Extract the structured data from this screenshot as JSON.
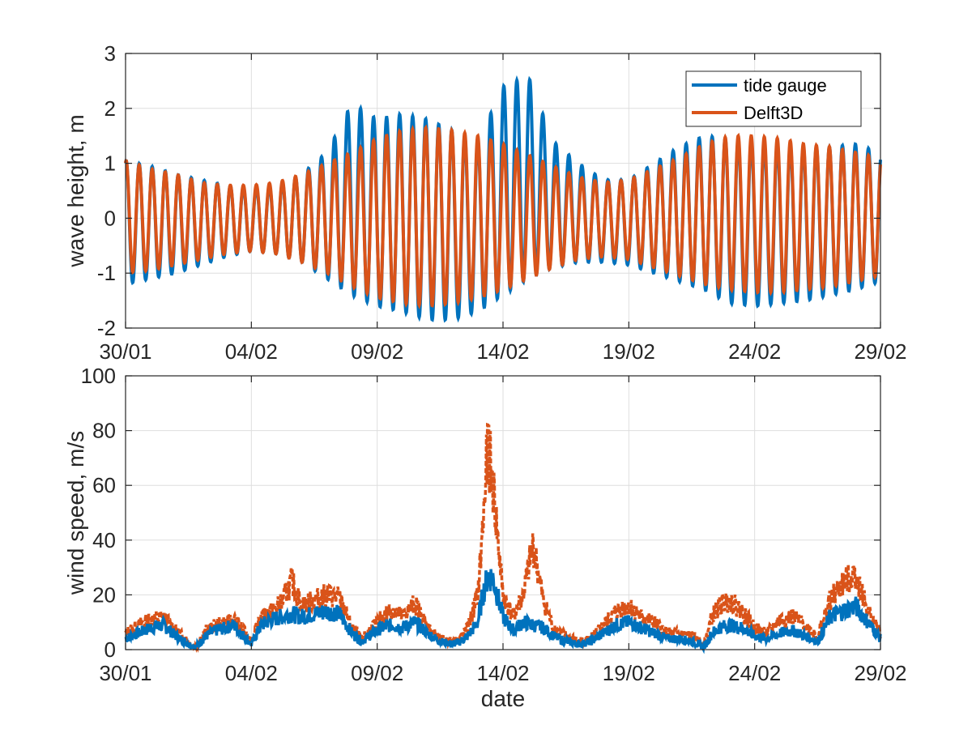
{
  "chart_data": [
    {
      "type": "line",
      "id": "wave",
      "xlabel": "",
      "ylabel": "wave height, m",
      "ylim": [
        -2,
        3
      ],
      "yticks": [
        -2,
        -1,
        0,
        1,
        2,
        3
      ],
      "xlim": [
        "30/01",
        "29/02"
      ],
      "xticks": [
        "30/01",
        "04/02",
        "09/02",
        "14/02",
        "19/02",
        "24/02",
        "29/02"
      ],
      "grid": true,
      "legend": "top-right",
      "colors": {
        "tide gauge": "#0072bd",
        "Delft3D": "#d95319"
      },
      "series": [
        {
          "name": "tide gauge",
          "x_dates": [
            "30/01",
            "31/01",
            "01/02",
            "02/02",
            "03/02",
            "04/02",
            "05/02",
            "06/02",
            "07/02",
            "08/02",
            "09/02",
            "10/02",
            "11/02",
            "12/02",
            "13/02",
            "14/02",
            "15/02",
            "16/02",
            "17/02",
            "18/02",
            "19/02",
            "20/02",
            "21/02",
            "22/02",
            "23/02",
            "24/02",
            "25/02",
            "26/02",
            "27/02",
            "28/02",
            "29/02"
          ],
          "high_water": [
            1.05,
            0.95,
            0.8,
            0.7,
            0.6,
            0.55,
            0.6,
            0.8,
            1.2,
            2.1,
            1.8,
            1.9,
            1.8,
            1.6,
            1.4,
            2.4,
            2.6,
            1.4,
            1.0,
            0.7,
            0.7,
            1.0,
            1.3,
            1.5,
            1.45,
            1.4,
            1.35,
            1.3,
            1.3,
            1.35,
            1.2
          ],
          "low_water": [
            -1.2,
            -1.1,
            -1.0,
            -0.85,
            -0.7,
            -0.6,
            -0.65,
            -0.8,
            -1.1,
            -1.4,
            -1.6,
            -1.7,
            -1.85,
            -1.85,
            -1.7,
            -1.4,
            -1.1,
            -0.9,
            -0.8,
            -0.8,
            -0.85,
            -1.0,
            -1.15,
            -1.3,
            -1.55,
            -1.6,
            -1.55,
            -1.5,
            -1.4,
            -1.3,
            -1.15
          ]
        },
        {
          "name": "Delft3D",
          "x_dates": [
            "30/01",
            "31/01",
            "01/02",
            "02/02",
            "03/02",
            "04/02",
            "05/02",
            "06/02",
            "07/02",
            "08/02",
            "09/02",
            "10/02",
            "11/02",
            "12/02",
            "13/02",
            "14/02",
            "15/02",
            "16/02",
            "17/02",
            "18/02",
            "19/02",
            "20/02",
            "21/02",
            "22/02",
            "23/02",
            "24/02",
            "25/02",
            "26/02",
            "27/02",
            "28/02",
            "29/02"
          ],
          "high_water": [
            1.05,
            0.9,
            0.8,
            0.65,
            0.6,
            0.6,
            0.65,
            0.8,
            1.0,
            1.2,
            1.45,
            1.6,
            1.65,
            1.6,
            1.5,
            1.35,
            1.15,
            0.95,
            0.75,
            0.65,
            0.7,
            0.9,
            1.1,
            1.35,
            1.5,
            1.5,
            1.45,
            1.35,
            1.3,
            1.2,
            1.1
          ],
          "low_water": [
            -1.0,
            -0.95,
            -0.85,
            -0.75,
            -0.65,
            -0.6,
            -0.65,
            -0.8,
            -1.0,
            -1.25,
            -1.45,
            -1.55,
            -1.6,
            -1.55,
            -1.45,
            -1.3,
            -1.1,
            -0.9,
            -0.75,
            -0.7,
            -0.75,
            -0.9,
            -1.05,
            -1.2,
            -1.3,
            -1.35,
            -1.35,
            -1.3,
            -1.25,
            -1.15,
            -1.05
          ]
        }
      ]
    },
    {
      "type": "line",
      "id": "wind",
      "xlabel": "date",
      "ylabel": "wind speed, m/s",
      "ylim": [
        0,
        100
      ],
      "yticks": [
        0,
        20,
        40,
        60,
        80,
        100
      ],
      "xlim": [
        "30/01",
        "29/02"
      ],
      "xticks": [
        "30/01",
        "04/02",
        "09/02",
        "14/02",
        "19/02",
        "24/02",
        "29/02"
      ],
      "grid": true,
      "legend": "none",
      "series": [
        {
          "name": "tide gauge",
          "x_days": [
            0,
            0.5,
            1,
            1.5,
            2,
            2.5,
            2.8,
            3.2,
            3.6,
            4,
            4.3,
            4.6,
            5,
            5.4,
            5.8,
            6.2,
            6.6,
            7,
            7.5,
            8,
            8.5,
            9,
            9.4,
            9.8,
            10.2,
            10.6,
            11,
            11.5,
            12,
            12.5,
            13,
            13.3,
            13.6,
            14,
            14.2,
            14.4,
            14.6,
            15,
            15.4,
            15.8,
            16.2,
            16.6,
            17,
            17.5,
            18,
            18.5,
            19,
            19.5,
            20,
            20.5,
            21,
            21.5,
            22,
            22.5,
            23,
            23.3,
            23.6,
            24,
            24.5,
            25,
            25.5,
            26,
            26.5,
            27,
            27.5,
            28,
            28.5,
            29,
            29.5,
            30
          ],
          "values": [
            4,
            6,
            8,
            9,
            5,
            2,
            1,
            5,
            7,
            8,
            9,
            6,
            2,
            9,
            11,
            12,
            13,
            12,
            13,
            14,
            13,
            6,
            3,
            6,
            8,
            9,
            8,
            10,
            6,
            3,
            2,
            3,
            5,
            10,
            20,
            27,
            26,
            12,
            7,
            10,
            9,
            8,
            5,
            3,
            2,
            3,
            6,
            9,
            10,
            8,
            6,
            4,
            4,
            3,
            1,
            6,
            8,
            9,
            8,
            5,
            4,
            6,
            7,
            5,
            3,
            12,
            14,
            16,
            10,
            4
          ]
        },
        {
          "name": "Delft3D",
          "x_days": [
            0,
            0.5,
            1,
            1.5,
            2,
            2.5,
            2.8,
            3.2,
            3.6,
            4,
            4.3,
            4.6,
            5,
            5.4,
            5.8,
            6.2,
            6.6,
            7,
            7.5,
            8,
            8.5,
            9,
            9.4,
            9.8,
            10.2,
            10.6,
            11,
            11.5,
            12,
            12.5,
            13,
            13.3,
            13.6,
            14,
            14.2,
            14.4,
            14.6,
            15,
            15.4,
            15.8,
            16.2,
            16.6,
            17,
            17.5,
            18,
            18.5,
            19,
            19.5,
            20,
            20.5,
            21,
            21.5,
            22,
            22.5,
            23,
            23.3,
            23.6,
            24,
            24.5,
            25,
            25.5,
            26,
            26.5,
            27,
            27.5,
            28,
            28.5,
            29,
            29.5,
            30
          ],
          "values": [
            6,
            9,
            11,
            12,
            7,
            3,
            1,
            7,
            9,
            10,
            11,
            8,
            3,
            12,
            14,
            17,
            25,
            16,
            18,
            20,
            19,
            8,
            4,
            8,
            12,
            15,
            12,
            17,
            8,
            4,
            3,
            4,
            8,
            20,
            45,
            75,
            60,
            20,
            12,
            20,
            38,
            18,
            8,
            5,
            3,
            4,
            9,
            14,
            16,
            12,
            10,
            6,
            6,
            5,
            2,
            12,
            16,
            18,
            14,
            8,
            6,
            11,
            12,
            9,
            5,
            18,
            24,
            28,
            14,
            6
          ]
        }
      ]
    }
  ]
}
